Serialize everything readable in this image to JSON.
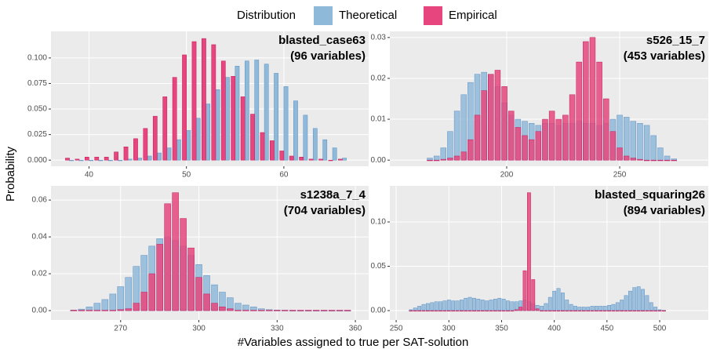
{
  "legend_title": "Distribution",
  "xlabel": "#Variables assigned to true per SAT-solution",
  "ylabel": "Probability",
  "chart_data": [
    {
      "type": "bar",
      "layout": "dodge",
      "title": "blasted_case63",
      "subtitle": "(96 variables)",
      "x": [
        38,
        39,
        40,
        41,
        42,
        43,
        44,
        45,
        46,
        47,
        48,
        49,
        50,
        51,
        52,
        53,
        54,
        55,
        56,
        57,
        58,
        59,
        60,
        61,
        62,
        63,
        64,
        65,
        66
      ],
      "series": [
        {
          "name": "Theoretical",
          "color": "#8fb9d9",
          "values": [
            0,
            0,
            0,
            0,
            0,
            0,
            0.001,
            0.002,
            0.004,
            0.007,
            0.012,
            0.02,
            0.029,
            0.041,
            0.055,
            0.069,
            0.081,
            0.092,
            0.097,
            0.098,
            0.094,
            0.085,
            0.072,
            0.058,
            0.044,
            0.031,
            0.02,
            0.012,
            0.002
          ]
        },
        {
          "name": "Empirical",
          "color": "#e6467d",
          "values": [
            0.002,
            0.001,
            0.003,
            0.003,
            0.003,
            0.008,
            0.013,
            0.021,
            0.031,
            0.043,
            0.062,
            0.081,
            0.103,
            0.116,
            0.119,
            0.113,
            0.097,
            0.082,
            0.062,
            0.045,
            0.027,
            0.019,
            0.009,
            0.004,
            0.003,
            0.001,
            0.001,
            0,
            0.001
          ]
        }
      ],
      "xlim": [
        36.1,
        68.7
      ],
      "xticks": [
        40,
        50,
        60
      ],
      "ylim": [
        -0.006,
        0.126
      ],
      "yticks": [
        {
          "value": 0,
          "label": "0.000"
        },
        {
          "value": 0.025,
          "label": "0.025"
        },
        {
          "value": 0.05,
          "label": "0.050"
        },
        {
          "value": 0.075,
          "label": "0.075"
        },
        {
          "value": 0.1,
          "label": "0.100"
        }
      ]
    },
    {
      "type": "bar",
      "layout": "overlap",
      "title": "s526_15_7",
      "subtitle": "(453 variables)",
      "x": [
        166,
        169,
        172,
        175,
        178,
        181,
        184,
        187,
        190,
        193,
        196,
        199,
        202,
        205,
        208,
        211,
        214,
        217,
        220,
        223,
        226,
        229,
        232,
        235,
        238,
        241,
        244,
        247,
        250,
        253,
        256,
        259,
        262,
        265,
        268,
        271,
        274
      ],
      "series": [
        {
          "name": "Theoretical",
          "color": "#8fb9d9",
          "values": [
            0.0005,
            0.001,
            0.003,
            0.007,
            0.012,
            0.016,
            0.019,
            0.021,
            0.0215,
            0.021,
            0.018,
            0.014,
            0.011,
            0.01,
            0.0095,
            0.009,
            0.0085,
            0.009,
            0.009,
            0.0085,
            0.009,
            0.009,
            0.0095,
            0.009,
            0.009,
            0.0085,
            0.009,
            0.01,
            0.011,
            0.0105,
            0.0095,
            0.009,
            0.0085,
            0.006,
            0.003,
            0.001,
            0.0003
          ]
        },
        {
          "name": "Empirical",
          "color": "#e6467d",
          "values": [
            0,
            0,
            0.0002,
            0.0005,
            0.001,
            0.002,
            0.005,
            0.011,
            0.017,
            0.021,
            0.022,
            0.018,
            0.012,
            0.008,
            0.006,
            0.005,
            0.007,
            0.01,
            0.012,
            0.01,
            0.011,
            0.016,
            0.024,
            0.029,
            0.03,
            0.024,
            0.015,
            0.007,
            0.003,
            0.001,
            0.0005,
            0.0002,
            0,
            0,
            0,
            0,
            0
          ]
        }
      ],
      "xlim": [
        148.3,
        289.2
      ],
      "xticks": [
        200,
        250
      ],
      "ylim": [
        -0.0015,
        0.0315
      ],
      "yticks": [
        {
          "value": 0,
          "label": "0.00"
        },
        {
          "value": 0.01,
          "label": "0.01"
        },
        {
          "value": 0.02,
          "label": "0.02"
        },
        {
          "value": 0.03,
          "label": "0.03"
        }
      ]
    },
    {
      "type": "bar",
      "layout": "overlap",
      "title": "s1238a_7_4",
      "subtitle": "(704 variables)",
      "x": [
        252,
        255,
        258,
        261,
        264,
        267,
        270,
        273,
        276,
        279,
        282,
        285,
        288,
        291,
        294,
        297,
        300,
        303,
        306,
        309,
        312,
        315,
        318,
        321,
        324,
        327,
        330,
        333,
        336,
        339,
        342,
        345,
        348,
        351,
        354,
        357
      ],
      "series": [
        {
          "name": "Theoretical",
          "color": "#8fb9d9",
          "values": [
            0.0003,
            0.0008,
            0.002,
            0.004,
            0.006,
            0.009,
            0.013,
            0.018,
            0.024,
            0.03,
            0.035,
            0.039,
            0.04,
            0.038,
            0.035,
            0.03,
            0.025,
            0.019,
            0.014,
            0.01,
            0.007,
            0.004,
            0.003,
            0.002,
            0.001,
            0.0005,
            0.0003,
            0.0002,
            0.0001,
            0.0001,
            0.0001,
            0.0001,
            0.0001,
            0.0001,
            0.0001,
            0.0001
          ]
        },
        {
          "name": "Empirical",
          "color": "#e6467d",
          "values": [
            0.0002,
            0.0002,
            0.0002,
            0.0002,
            0.0002,
            0.0002,
            0.0005,
            0.001,
            0.004,
            0.01,
            0.02,
            0.036,
            0.058,
            0.064,
            0.05,
            0.034,
            0.018,
            0.009,
            0.004,
            0.002,
            0.001,
            0.0002,
            0.0002,
            0.0002,
            0.0002,
            0.0002,
            0.0002,
            0.0002,
            0.0002,
            0.0002,
            0.0002,
            0.0002,
            0.0002,
            0.0002,
            0.0002,
            0.0002
          ]
        }
      ],
      "xlim": [
        243.3,
        365.1
      ],
      "xticks": [
        270,
        300,
        330,
        360
      ],
      "ylim": [
        -0.0051,
        0.0677
      ],
      "yticks": [
        {
          "value": 0,
          "label": "0.00"
        },
        {
          "value": 0.02,
          "label": "0.02"
        },
        {
          "value": 0.04,
          "label": "0.04"
        },
        {
          "value": 0.06,
          "label": "0.06"
        }
      ]
    },
    {
      "type": "bar",
      "layout": "overlap",
      "title": "blasted_squaring26",
      "subtitle": "(894 variables)",
      "x": [
        264,
        268,
        272,
        276,
        280,
        284,
        288,
        292,
        296,
        300,
        304,
        308,
        312,
        316,
        320,
        324,
        328,
        332,
        336,
        340,
        344,
        348,
        352,
        356,
        360,
        364,
        368,
        372,
        376,
        380,
        384,
        388,
        392,
        396,
        400,
        404,
        408,
        412,
        416,
        420,
        424,
        428,
        432,
        436,
        440,
        444,
        448,
        452,
        456,
        460,
        464,
        468,
        472,
        476,
        480,
        484,
        488,
        492,
        496,
        500,
        504
      ],
      "series": [
        {
          "name": "Theoretical",
          "color": "#8fb9d9",
          "values": [
            0.001,
            0.003,
            0.005,
            0.007,
            0.008,
            0.009,
            0.01,
            0.01,
            0.011,
            0.012,
            0.011,
            0.011,
            0.012,
            0.014,
            0.015,
            0.014,
            0.013,
            0.012,
            0.011,
            0.012,
            0.013,
            0.014,
            0.013,
            0.011,
            0.01,
            0.01,
            0.011,
            0.012,
            0.01,
            0.008,
            0.006,
            0.005,
            0.008,
            0.015,
            0.022,
            0.025,
            0.02,
            0.012,
            0.007,
            0.005,
            0.004,
            0.004,
            0.004,
            0.005,
            0.005,
            0.005,
            0.005,
            0.006,
            0.007,
            0.009,
            0.012,
            0.017,
            0.022,
            0.026,
            0.027,
            0.024,
            0.017,
            0.009,
            0.004,
            0.001,
            0.0003
          ]
        },
        {
          "name": "Empirical",
          "color": "#e6467d",
          "values": [
            0,
            0,
            0,
            0,
            0,
            0,
            0,
            0,
            0,
            0,
            0,
            0,
            0,
            0,
            0,
            0,
            0,
            0,
            0,
            0,
            0,
            0,
            0,
            0,
            0,
            0.001,
            0.004,
            0.045,
            0.133,
            0.035,
            0.002,
            0,
            0,
            0,
            0,
            0,
            0,
            0,
            0,
            0,
            0,
            0,
            0,
            0,
            0,
            0,
            0,
            0,
            0,
            0,
            0,
            0,
            0,
            0,
            0,
            0,
            0,
            0,
            0,
            0,
            0
          ]
        }
      ],
      "xlim": [
        244.0,
        546.1
      ],
      "xticks": [
        250,
        300,
        350,
        400,
        450,
        500
      ],
      "ylim": [
        -0.0106,
        0.1407
      ],
      "yticks": [
        {
          "value": 0,
          "label": "0.00"
        },
        {
          "value": 0.05,
          "label": "0.05"
        },
        {
          "value": 0.1,
          "label": "0.10"
        }
      ]
    }
  ]
}
